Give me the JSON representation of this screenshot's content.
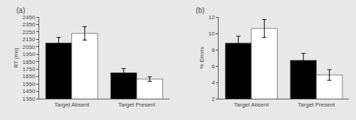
{
  "chart_data": [
    {
      "type": "bar",
      "categories": [
        "Target Absent",
        "Target Present"
      ],
      "series": [
        {
          "color": "#000000",
          "values": [
            2100,
            1700
          ],
          "errors": [
            75,
            55
          ]
        },
        {
          "color": "#ffffff",
          "values": [
            2230,
            1615
          ],
          "errors": [
            90,
            30
          ]
        }
      ],
      "ylabel": "RT (ms)",
      "ylim": [
        1350,
        2450
      ],
      "yticks": [
        1350,
        1450,
        1550,
        1650,
        1750,
        1850,
        1950,
        2050,
        2150,
        2250,
        2350,
        2450
      ],
      "grid": false,
      "annotations": [
        "(a)"
      ]
    },
    {
      "type": "bar",
      "categories": [
        "Target Absent",
        "Target Present"
      ],
      "series": [
        {
          "color": "#000000",
          "values": [
            8.8,
            6.7
          ],
          "errors": [
            0.85,
            0.85
          ]
        },
        {
          "color": "#ffffff",
          "values": [
            10.6,
            4.9
          ],
          "errors": [
            1.1,
            0.65
          ]
        }
      ],
      "ylabel": "% Errors",
      "ylim": [
        2,
        12
      ],
      "yticks": [
        2,
        4,
        6,
        8,
        10,
        12
      ],
      "grid": false,
      "annotations": [
        "(b)"
      ]
    }
  ]
}
